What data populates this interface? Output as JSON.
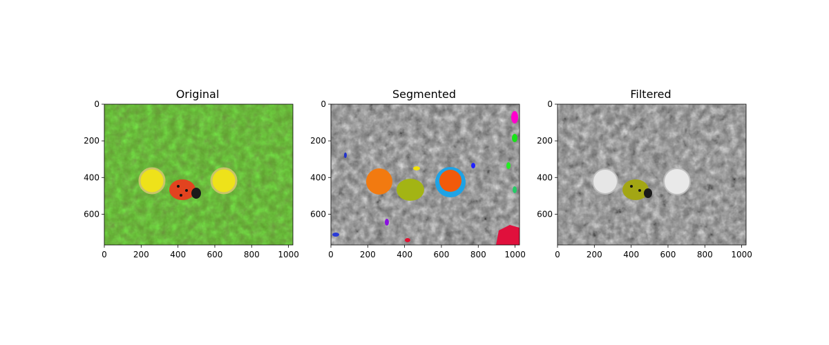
{
  "figure": {
    "panels": [
      {
        "title": "Original",
        "kind": "original",
        "x_ticks": [
          "0",
          "200",
          "400",
          "600",
          "800",
          "1000"
        ],
        "y_ticks": [
          "0",
          "200",
          "400",
          "600"
        ]
      },
      {
        "title": "Segmented",
        "kind": "segmented",
        "x_ticks": [
          "0",
          "200",
          "400",
          "600",
          "800",
          "1000"
        ],
        "y_ticks": [
          "0",
          "200",
          "400",
          "600"
        ]
      },
      {
        "title": "Filtered",
        "kind": "filtered",
        "x_ticks": [
          "0",
          "200",
          "400",
          "600",
          "800",
          "1000"
        ],
        "y_ticks": [
          "0",
          "200",
          "400",
          "600"
        ]
      }
    ]
  },
  "colors": {
    "ladybug_red": "#e2431f",
    "flower_yellow": "#eee21a",
    "foliage_green": "#6fae3a",
    "segment_orange": "#f27a10",
    "segment_olive": "#a3b414",
    "segment_blue": "#1ea3e6",
    "segment_redorange": "#f25a0a",
    "segment_crimson": "#e0103c"
  }
}
